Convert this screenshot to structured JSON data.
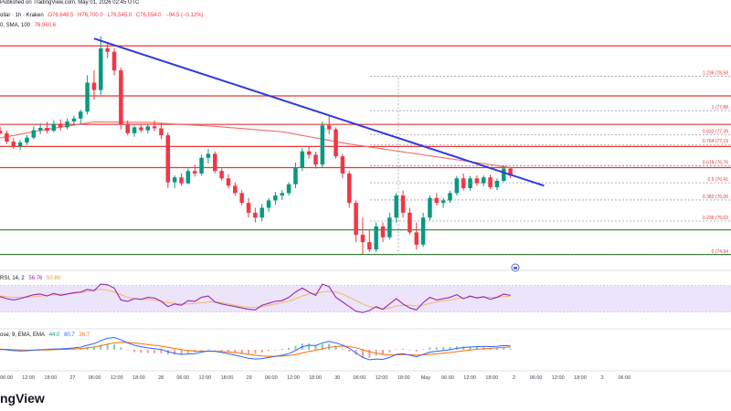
{
  "header": {
    "symbol_fragment": "ollar · 1h · Kraken",
    "published": "Published on TradingView.com, May 01, 2026 02:45 UTC",
    "ohlc": {
      "o": "O76,648.5",
      "h": "H76,700.0",
      "l": "L76,545.0",
      "c": "C76,554.0",
      "chg": "−94.5 (−0.12%)"
    },
    "sma_label": "0, SMA, 100",
    "sma_value": "76,960.6"
  },
  "brand": "ngView",
  "colors": {
    "up": "#089981",
    "down": "#f23645",
    "trend": "#2f3bd9",
    "sma": "#f06a6a",
    "red_level": "#e53935",
    "green_level": "#2e7d32",
    "fib_gray": "#9aa0a6",
    "fib_blue": "#7f8cc8",
    "rsi_band": "#ece4f9",
    "rsi_line": "#9c27b0",
    "rsi_ma": "#f2b866",
    "macd_line": "#2962ff",
    "signal_line": "#ff6d00"
  },
  "fib_labels": [
    {
      "label": "1.236 (78,58"
    },
    {
      "label": "1 (77,88"
    },
    {
      "label": "0.832 (77,39"
    },
    {
      "label": "0.764 (77,19"
    },
    {
      "label": "0.618 (76,76"
    },
    {
      "label": "0.5 (76,41"
    },
    {
      "label": "0.382 (76,06"
    },
    {
      "label": "0.236 (75,63"
    },
    {
      "label": "0 (74,94"
    }
  ],
  "rsi_header": {
    "label": "RSI, 14, 2",
    "value": "56.76",
    "ma_value": "50.88"
  },
  "macd_header": {
    "label": "ose, 9, EMA, EMA",
    "v1": "44.0",
    "v2": "80.7",
    "v3": "36.7"
  },
  "x_ticks": [
    "06:00",
    "12:00",
    "18:00",
    "27",
    "06:00",
    "12:00",
    "18:00",
    "28",
    "06:00",
    "12:00",
    "18:00",
    "29",
    "06:00",
    "12:00",
    "18:00",
    "30",
    "06:00",
    "12:00",
    "18:00",
    "May",
    "06:00",
    "12:00",
    "18:00",
    "2",
    "06:00",
    "12:00",
    "18:00",
    "3",
    "06:00"
  ],
  "chart_data": {
    "type": "candlestick",
    "interval": "1h",
    "y_unit": "USD",
    "ylim": [
      74700,
      79800
    ],
    "price_candles": [
      {
        "o": 77480,
        "h": 77620,
        "l": 77380,
        "c": 77430
      },
      {
        "o": 77430,
        "h": 77540,
        "l": 77300,
        "c": 77360
      },
      {
        "o": 77360,
        "h": 77520,
        "l": 77300,
        "c": 77470
      },
      {
        "o": 77470,
        "h": 77560,
        "l": 77390,
        "c": 77420
      },
      {
        "o": 77420,
        "h": 77480,
        "l": 77200,
        "c": 77250
      },
      {
        "o": 77250,
        "h": 77330,
        "l": 77100,
        "c": 77150
      },
      {
        "o": 77150,
        "h": 77280,
        "l": 77080,
        "c": 77230
      },
      {
        "o": 77230,
        "h": 77380,
        "l": 77180,
        "c": 77330
      },
      {
        "o": 77330,
        "h": 77560,
        "l": 77300,
        "c": 77480
      },
      {
        "o": 77480,
        "h": 77620,
        "l": 77400,
        "c": 77530
      },
      {
        "o": 77530,
        "h": 77650,
        "l": 77420,
        "c": 77470
      },
      {
        "o": 77470,
        "h": 77680,
        "l": 77440,
        "c": 77610
      },
      {
        "o": 77610,
        "h": 77700,
        "l": 77480,
        "c": 77540
      },
      {
        "o": 77540,
        "h": 77720,
        "l": 77500,
        "c": 77660
      },
      {
        "o": 77660,
        "h": 77780,
        "l": 77580,
        "c": 77720
      },
      {
        "o": 77720,
        "h": 77900,
        "l": 77600,
        "c": 77860
      },
      {
        "o": 77860,
        "h": 78600,
        "l": 77800,
        "c": 78450
      },
      {
        "o": 78450,
        "h": 78700,
        "l": 78100,
        "c": 78300
      },
      {
        "o": 78300,
        "h": 79400,
        "l": 78200,
        "c": 79150
      },
      {
        "o": 79150,
        "h": 79260,
        "l": 78950,
        "c": 79080
      },
      {
        "o": 79080,
        "h": 79150,
        "l": 78600,
        "c": 78700
      },
      {
        "o": 78700,
        "h": 78760,
        "l": 77500,
        "c": 77600
      },
      {
        "o": 77600,
        "h": 77680,
        "l": 77380,
        "c": 77420
      },
      {
        "o": 77420,
        "h": 77580,
        "l": 77350,
        "c": 77540
      },
      {
        "o": 77540,
        "h": 77610,
        "l": 77440,
        "c": 77480
      },
      {
        "o": 77480,
        "h": 77600,
        "l": 77420,
        "c": 77560
      },
      {
        "o": 77560,
        "h": 77680,
        "l": 77460,
        "c": 77520
      },
      {
        "o": 77520,
        "h": 77620,
        "l": 77300,
        "c": 77380
      },
      {
        "o": 77380,
        "h": 77440,
        "l": 76300,
        "c": 76420
      },
      {
        "o": 76420,
        "h": 76560,
        "l": 76300,
        "c": 76520
      },
      {
        "o": 76520,
        "h": 76600,
        "l": 76350,
        "c": 76400
      },
      {
        "o": 76400,
        "h": 76700,
        "l": 76380,
        "c": 76650
      },
      {
        "o": 76650,
        "h": 76780,
        "l": 76540,
        "c": 76600
      },
      {
        "o": 76600,
        "h": 76980,
        "l": 76560,
        "c": 76920
      },
      {
        "o": 76920,
        "h": 77100,
        "l": 76800,
        "c": 77000
      },
      {
        "o": 77000,
        "h": 77050,
        "l": 76600,
        "c": 76650
      },
      {
        "o": 76650,
        "h": 76700,
        "l": 76450,
        "c": 76500
      },
      {
        "o": 76500,
        "h": 76580,
        "l": 76300,
        "c": 76350
      },
      {
        "o": 76350,
        "h": 76420,
        "l": 76150,
        "c": 76200
      },
      {
        "o": 76200,
        "h": 76260,
        "l": 75950,
        "c": 76000
      },
      {
        "o": 76000,
        "h": 76100,
        "l": 75700,
        "c": 75800
      },
      {
        "o": 75800,
        "h": 75900,
        "l": 75600,
        "c": 75700
      },
      {
        "o": 75700,
        "h": 75980,
        "l": 75620,
        "c": 75900
      },
      {
        "o": 75900,
        "h": 76100,
        "l": 75820,
        "c": 76050
      },
      {
        "o": 76050,
        "h": 76220,
        "l": 75960,
        "c": 76150
      },
      {
        "o": 76150,
        "h": 76260,
        "l": 76060,
        "c": 76200
      },
      {
        "o": 76200,
        "h": 76420,
        "l": 76150,
        "c": 76380
      },
      {
        "o": 76380,
        "h": 76820,
        "l": 76300,
        "c": 76720
      },
      {
        "o": 76720,
        "h": 77120,
        "l": 76650,
        "c": 77050
      },
      {
        "o": 77050,
        "h": 77160,
        "l": 76900,
        "c": 76980
      },
      {
        "o": 76980,
        "h": 77040,
        "l": 76700,
        "c": 76780
      },
      {
        "o": 76780,
        "h": 77660,
        "l": 76720,
        "c": 77580
      },
      {
        "o": 77580,
        "h": 77760,
        "l": 77400,
        "c": 77500
      },
      {
        "o": 77500,
        "h": 77540,
        "l": 76900,
        "c": 76950
      },
      {
        "o": 76950,
        "h": 77000,
        "l": 76500,
        "c": 76600
      },
      {
        "o": 76600,
        "h": 76650,
        "l": 75900,
        "c": 76000
      },
      {
        "o": 76000,
        "h": 76050,
        "l": 75200,
        "c": 75350
      },
      {
        "o": 75350,
        "h": 75700,
        "l": 74950,
        "c": 75200
      },
      {
        "o": 75200,
        "h": 75450,
        "l": 75000,
        "c": 75050
      },
      {
        "o": 75050,
        "h": 75600,
        "l": 75000,
        "c": 75520
      },
      {
        "o": 75520,
        "h": 75600,
        "l": 75200,
        "c": 75300
      },
      {
        "o": 75300,
        "h": 75800,
        "l": 75250,
        "c": 75700
      },
      {
        "o": 75700,
        "h": 76200,
        "l": 75600,
        "c": 76150
      },
      {
        "o": 76150,
        "h": 76250,
        "l": 75700,
        "c": 75800
      },
      {
        "o": 75800,
        "h": 75900,
        "l": 75350,
        "c": 75400
      },
      {
        "o": 75400,
        "h": 75600,
        "l": 75050,
        "c": 75150
      },
      {
        "o": 75150,
        "h": 75800,
        "l": 75100,
        "c": 75700
      },
      {
        "o": 75700,
        "h": 76150,
        "l": 75650,
        "c": 76100
      },
      {
        "o": 76100,
        "h": 76200,
        "l": 75950,
        "c": 76000
      },
      {
        "o": 76000,
        "h": 76100,
        "l": 75900,
        "c": 76050
      },
      {
        "o": 76050,
        "h": 76250,
        "l": 76000,
        "c": 76200
      },
      {
        "o": 76200,
        "h": 76550,
        "l": 76150,
        "c": 76500
      },
      {
        "o": 76500,
        "h": 76600,
        "l": 76250,
        "c": 76300
      },
      {
        "o": 76300,
        "h": 76550,
        "l": 76250,
        "c": 76500
      },
      {
        "o": 76500,
        "h": 76560,
        "l": 76350,
        "c": 76400
      },
      {
        "o": 76400,
        "h": 76560,
        "l": 76340,
        "c": 76520
      },
      {
        "o": 76520,
        "h": 76580,
        "l": 76280,
        "c": 76320
      },
      {
        "o": 76320,
        "h": 76500,
        "l": 76260,
        "c": 76450
      },
      {
        "o": 76450,
        "h": 76760,
        "l": 76420,
        "c": 76700
      },
      {
        "o": 76700,
        "h": 76720,
        "l": 76500,
        "c": 76554
      }
    ],
    "sma100": [
      {
        "i": 0,
        "v": 77250
      },
      {
        "i": 10,
        "v": 77500
      },
      {
        "i": 17,
        "v": 77650
      },
      {
        "i": 25,
        "v": 77640
      },
      {
        "i": 35,
        "v": 77560
      },
      {
        "i": 45,
        "v": 77450
      },
      {
        "i": 55,
        "v": 77200
      },
      {
        "i": 65,
        "v": 77000
      },
      {
        "i": 79,
        "v": 76720
      }
    ],
    "trendline": [
      {
        "i": 17,
        "v": 79350
      },
      {
        "i": 84,
        "v": 76350
      }
    ],
    "horizontal_levels": [
      {
        "price": 79200,
        "color": "red"
      },
      {
        "price": 78180,
        "color": "red"
      },
      {
        "price": 77600,
        "color": "red"
      },
      {
        "price": 77150,
        "color": "red"
      },
      {
        "price": 76720,
        "color": "red"
      },
      {
        "price": 75450,
        "color": "green"
      },
      {
        "price": 74950,
        "color": "green"
      }
    ],
    "fib_levels": [
      {
        "ratio": 1.236,
        "price": 78580
      },
      {
        "ratio": 1,
        "price": 77880
      },
      {
        "ratio": 0.832,
        "price": 77390
      },
      {
        "ratio": 0.764,
        "price": 77190
      },
      {
        "ratio": 0.618,
        "price": 76760
      },
      {
        "ratio": 0.5,
        "price": 76410
      },
      {
        "ratio": 0.382,
        "price": 76060
      },
      {
        "ratio": 0.236,
        "price": 75630
      },
      {
        "ratio": 0,
        "price": 74940
      }
    ],
    "rsi": {
      "ylim": [
        10,
        90
      ],
      "band": [
        30,
        70
      ],
      "values": [
        55,
        54,
        56,
        53,
        50,
        48,
        50,
        53,
        56,
        57,
        54,
        58,
        55,
        57,
        59,
        60,
        64,
        62,
        72,
        71,
        66,
        48,
        46,
        50,
        49,
        52,
        51,
        46,
        38,
        42,
        40,
        47,
        46,
        52,
        54,
        45,
        42,
        40,
        38,
        36,
        34,
        33,
        40,
        43,
        46,
        47,
        52,
        60,
        66,
        60,
        55,
        72,
        68,
        52,
        45,
        38,
        31,
        29,
        32,
        38,
        34,
        42,
        50,
        42,
        36,
        33,
        44,
        52,
        48,
        50,
        52,
        56,
        50,
        54,
        51,
        53,
        49,
        52,
        57,
        55
      ]
    },
    "rsi_ma": [
      55,
      55,
      55,
      54,
      53,
      52,
      52,
      52,
      53,
      54,
      55,
      56,
      57,
      57,
      58,
      59,
      61,
      63,
      64,
      63,
      60,
      56,
      52,
      50,
      49,
      49,
      48,
      46,
      44,
      43,
      42,
      42,
      43,
      44,
      45,
      45,
      44,
      42,
      40,
      38,
      37,
      37,
      38,
      40,
      42,
      44,
      46,
      50,
      54,
      57,
      58,
      60,
      61,
      60,
      57,
      52,
      47,
      42,
      38,
      36,
      34,
      36,
      39,
      40,
      40,
      39,
      40,
      43,
      45,
      47,
      48,
      50,
      51,
      52,
      52,
      52,
      52,
      52,
      53,
      54
    ],
    "macd": {
      "ylim": [
        -250,
        250
      ],
      "macd_line": [
        10,
        8,
        9,
        6,
        0,
        -10,
        -15,
        -12,
        -5,
        2,
        5,
        10,
        12,
        18,
        25,
        35,
        60,
        80,
        120,
        150,
        160,
        130,
        90,
        60,
        40,
        25,
        15,
        5,
        -25,
        -45,
        -60,
        -55,
        -50,
        -30,
        -15,
        -20,
        -35,
        -50,
        -70,
        -90,
        -110,
        -120,
        -115,
        -100,
        -85,
        -70,
        -50,
        -10,
        40,
        60,
        55,
        90,
        110,
        90,
        60,
        20,
        -40,
        -100,
        -130,
        -120,
        -125,
        -100,
        -60,
        -50,
        -70,
        -90,
        -60,
        -30,
        -20,
        -10,
        0,
        20,
        30,
        35,
        40,
        45,
        42,
        45,
        55,
        50
      ],
      "signal_line": [
        8,
        8,
        8,
        8,
        6,
        2,
        -2,
        -4,
        -4,
        -3,
        -1,
        1,
        4,
        7,
        11,
        16,
        25,
        36,
        53,
        73,
        90,
        98,
        96,
        89,
        79,
        68,
        58,
        47,
        33,
        18,
        2,
        -9,
        -17,
        -20,
        -19,
        -19,
        -22,
        -28,
        -36,
        -47,
        -60,
        -72,
        -81,
        -85,
        -85,
        -82,
        -75,
        -62,
        -42,
        -21,
        -6,
        13,
        32,
        44,
        47,
        42,
        26,
        1,
        -25,
        -44,
        -60,
        -68,
        -66,
        -63,
        -64,
        -69,
        -67,
        -60,
        -52,
        -44,
        -35,
        -24,
        -13,
        -3,
        6,
        14,
        20,
        25,
        31,
        35
      ]
    }
  }
}
